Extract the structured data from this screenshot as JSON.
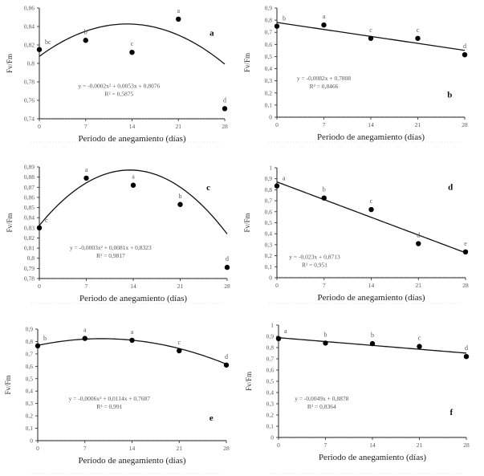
{
  "figure": {
    "x_axis_label": "Periodo de anegamiento (días)",
    "y_axis_label": "Fv/Fm"
  },
  "chart_data": [
    {
      "panel": "a",
      "type": "scatter",
      "xlabel": "Periodo de anegamiento (días)",
      "ylabel": "Fv/Fm",
      "x_ticks": [
        "0",
        "7",
        "14",
        "21",
        "28"
      ],
      "y_ticks": [
        "0,74",
        "0,76",
        "0,78",
        "0,8",
        "0,82",
        "0,84",
        "0,86"
      ],
      "xlim": [
        0,
        28
      ],
      "ylim": [
        0.74,
        0.86
      ],
      "x": [
        0,
        7,
        14,
        21,
        28
      ],
      "y": [
        0.815,
        0.825,
        0.812,
        0.848,
        0.751
      ],
      "letters": [
        "bc",
        "b",
        "c",
        "a",
        "d"
      ],
      "fit": {
        "type": "quadratic",
        "coef": [
          -0.0002,
          0.0053,
          0.8076
        ]
      },
      "equation": "y = -0,0002x² + 0,0053x + 0,8076",
      "r2": "R² = 0,5875"
    },
    {
      "panel": "b",
      "type": "scatter",
      "xlabel": "Periodo de anegamiento (días)",
      "ylabel": "Fv/Fm",
      "x_ticks": [
        "0",
        "7",
        "14",
        "21",
        "28"
      ],
      "y_ticks": [
        "0",
        "0,1",
        "0,2",
        "0,3",
        "0,4",
        "0,5",
        "0,6",
        "0,7",
        "0,8",
        "0,9"
      ],
      "xlim": [
        0,
        28
      ],
      "ylim": [
        0,
        0.9
      ],
      "x": [
        0,
        7,
        14,
        21,
        28
      ],
      "y": [
        0.75,
        0.76,
        0.65,
        0.65,
        0.515
      ],
      "letters": [
        "b",
        "a",
        "c",
        "c",
        "d"
      ],
      "fit": {
        "type": "linear",
        "coef": [
          -0.0082,
          0.7808
        ]
      },
      "equation": "y = -0,0082x + 0,7808",
      "r2": "R² = 0,8466"
    },
    {
      "panel": "c",
      "type": "scatter",
      "xlabel": "Periodo de anegamiento (días)",
      "ylabel": "Fv/Fm",
      "x_ticks": [
        "0",
        "7",
        "14",
        "21",
        "28"
      ],
      "y_ticks": [
        "0,78",
        "0,79",
        "0,8",
        "0,81",
        "0,82",
        "0,83",
        "0,84",
        "0,85",
        "0,86",
        "0,87",
        "0,88",
        "0,89"
      ],
      "xlim": [
        0,
        28
      ],
      "ylim": [
        0.78,
        0.89
      ],
      "x": [
        0,
        7,
        14,
        21,
        28
      ],
      "y": [
        0.83,
        0.879,
        0.872,
        0.853,
        0.791
      ],
      "letters": [
        "c",
        "a",
        "a",
        "b",
        "d"
      ],
      "fit": {
        "type": "quadratic",
        "coef": [
          -0.0003,
          0.0081,
          0.8323
        ]
      },
      "equation": "y = -0,0003x² + 0,0081x + 0,8323",
      "r2": "R² = 0,9817"
    },
    {
      "panel": "d",
      "type": "scatter",
      "xlabel": "Periodo de anegamiento (días)",
      "ylabel": "Fv/Fm",
      "x_ticks": [
        "0",
        "7",
        "14",
        "21",
        "28"
      ],
      "y_ticks": [
        "0",
        "0,1",
        "0,2",
        "0,3",
        "0,4",
        "0,5",
        "0,6",
        "0,7",
        "0,8",
        "0,9",
        "1"
      ],
      "xlim": [
        0,
        28
      ],
      "ylim": [
        0,
        1
      ],
      "x": [
        0,
        7,
        14,
        21,
        28
      ],
      "y": [
        0.835,
        0.725,
        0.62,
        0.31,
        0.235
      ],
      "letters": [
        "a",
        "b",
        "c",
        "d",
        "e"
      ],
      "fit": {
        "type": "linear",
        "coef": [
          -0.023,
          0.8713
        ]
      },
      "equation": "y = -0,023x + 0,8713",
      "r2": "R² = 0,951"
    },
    {
      "panel": "e",
      "type": "scatter",
      "xlabel": "Periodo de anegamiento (días)",
      "ylabel": "Fv/Fm",
      "x_ticks": [
        "0",
        "7",
        "14",
        "21",
        "28"
      ],
      "y_ticks": [
        "0",
        "0,1",
        "0,2",
        "0,3",
        "0,4",
        "0,5",
        "0,6",
        "0,7",
        "0,8",
        "0,9"
      ],
      "xlim": [
        0,
        28
      ],
      "ylim": [
        0,
        0.9
      ],
      "x": [
        0,
        7,
        14,
        21,
        28
      ],
      "y": [
        0.765,
        0.825,
        0.81,
        0.725,
        0.61
      ],
      "letters": [
        "b",
        "a",
        "a",
        "c",
        "d"
      ],
      "fit": {
        "type": "quadratic",
        "coef": [
          -0.0006,
          0.0114,
          0.7687
        ]
      },
      "equation": "y = -0,0006x² + 0,0114x + 0,7687",
      "r2": "R² = 0,991"
    },
    {
      "panel": "f",
      "type": "scatter",
      "xlabel": "Periodo de anegamiento (días)",
      "ylabel": "Fv/Fm",
      "x_ticks": [
        "0",
        "7",
        "14",
        "21",
        "28"
      ],
      "y_ticks": [
        "0",
        "0,1",
        "0,2",
        "0,3",
        "0,4",
        "0,5",
        "0,6",
        "0,7",
        "0,8",
        "0,9",
        "1"
      ],
      "xlim": [
        0,
        28
      ],
      "ylim": [
        0,
        1
      ],
      "x": [
        0,
        7,
        14,
        21,
        28
      ],
      "y": [
        0.88,
        0.84,
        0.835,
        0.81,
        0.72
      ],
      "letters": [
        "a",
        "b",
        "b",
        "c",
        "d"
      ],
      "fit": {
        "type": "linear",
        "coef": [
          -0.0049,
          0.8878
        ]
      },
      "equation": "y = -0,0049x + 0,8878",
      "r2": "R² = 0,8364"
    }
  ]
}
